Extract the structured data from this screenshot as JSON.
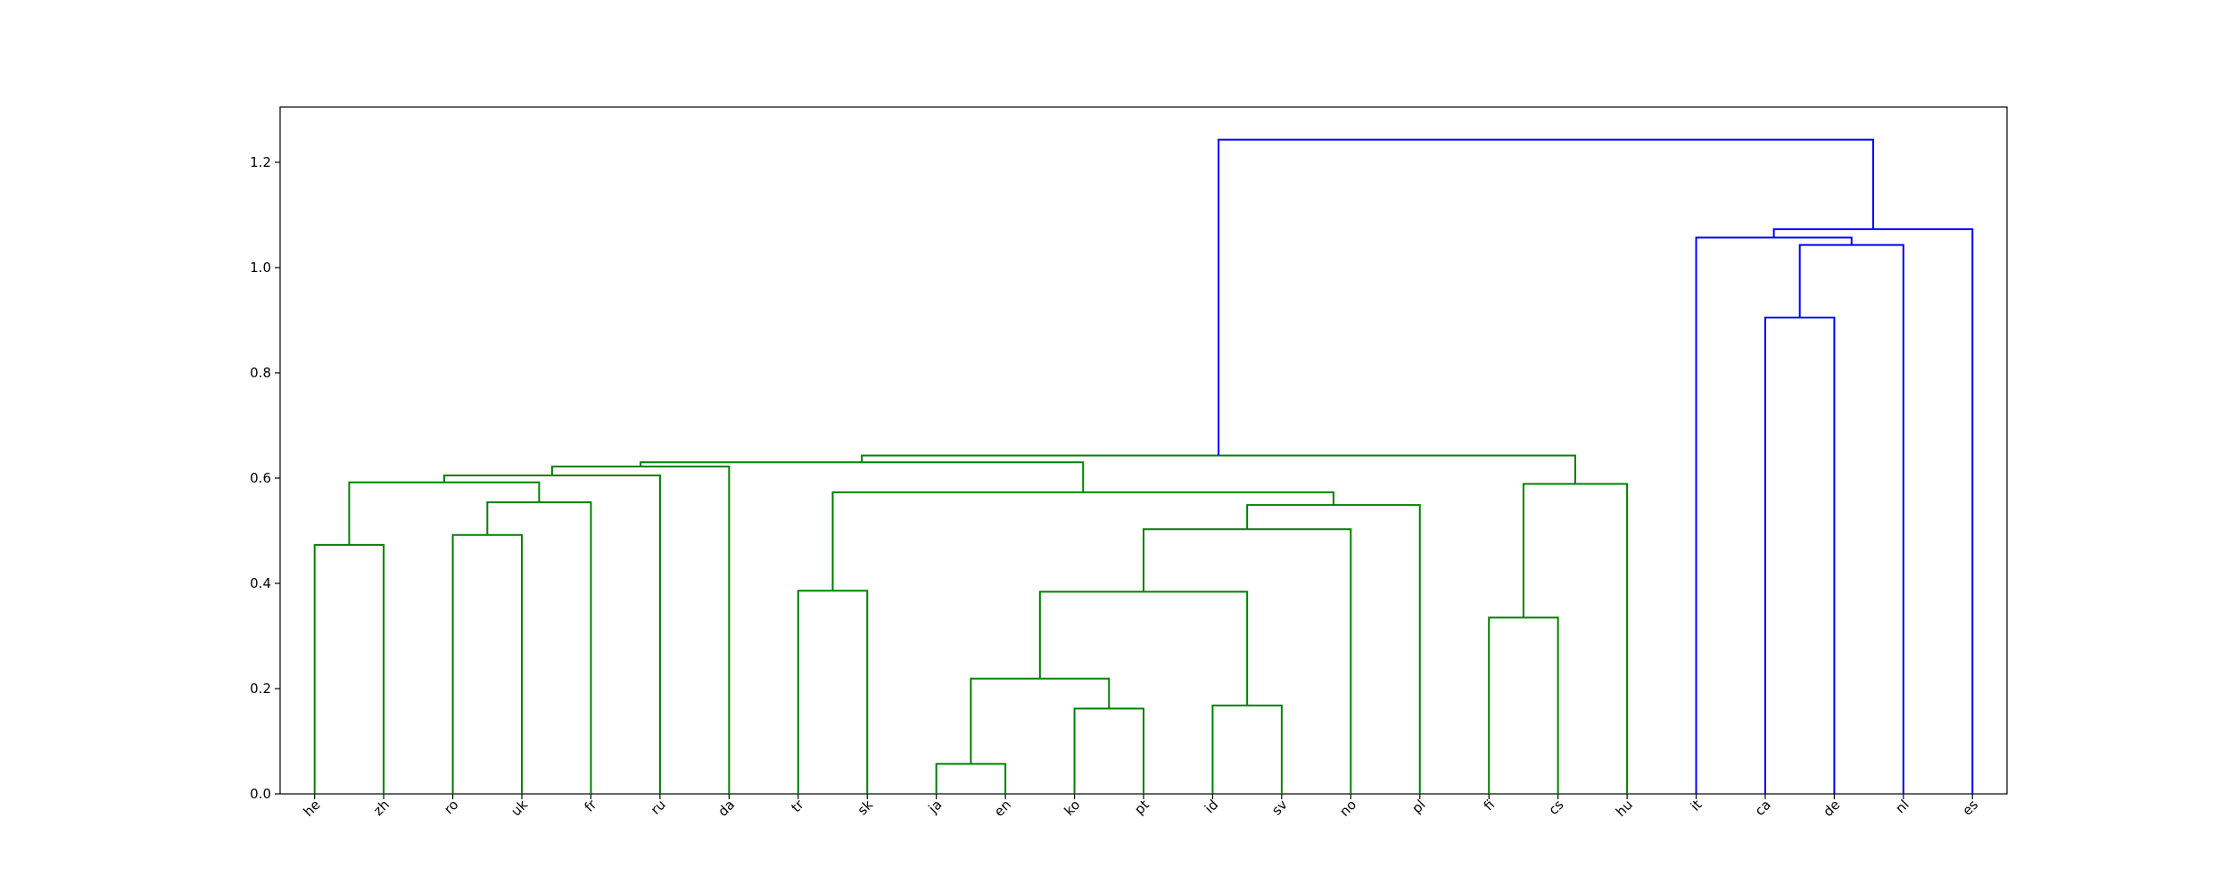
{
  "chart_data": {
    "type": "dendrogram",
    "categories": [
      "he",
      "zh",
      "ro",
      "uk",
      "fr",
      "ru",
      "da",
      "tr",
      "sk",
      "ja",
      "en",
      "ko",
      "pt",
      "id",
      "sv",
      "no",
      "pl",
      "fi",
      "cs",
      "hu",
      "it",
      "ca",
      "de",
      "nl",
      "es"
    ],
    "links": [
      {
        "children": [
          0,
          1
        ],
        "height": 0.473,
        "color": "#008000"
      },
      {
        "children": [
          2,
          3
        ],
        "height": 0.492,
        "color": "#008000"
      },
      {
        "children": [
          26,
          4
        ],
        "height": 0.554,
        "color": "#008000"
      },
      {
        "children": [
          25,
          27
        ],
        "height": 0.592,
        "color": "#008000"
      },
      {
        "children": [
          28,
          5
        ],
        "height": 0.605,
        "color": "#008000"
      },
      {
        "children": [
          29,
          6
        ],
        "height": 0.622,
        "color": "#008000"
      },
      {
        "children": [
          7,
          8
        ],
        "height": 0.386,
        "color": "#008000"
      },
      {
        "children": [
          9,
          10
        ],
        "height": 0.057,
        "color": "#008000"
      },
      {
        "children": [
          11,
          12
        ],
        "height": 0.162,
        "color": "#008000"
      },
      {
        "children": [
          32,
          33
        ],
        "height": 0.219,
        "color": "#008000"
      },
      {
        "children": [
          13,
          14
        ],
        "height": 0.168,
        "color": "#008000"
      },
      {
        "children": [
          34,
          35
        ],
        "height": 0.384,
        "color": "#008000"
      },
      {
        "children": [
          36,
          15
        ],
        "height": 0.503,
        "color": "#008000"
      },
      {
        "children": [
          37,
          16
        ],
        "height": 0.549,
        "color": "#008000"
      },
      {
        "children": [
          31,
          38
        ],
        "height": 0.573,
        "color": "#008000"
      },
      {
        "children": [
          30,
          39
        ],
        "height": 0.63,
        "color": "#008000"
      },
      {
        "children": [
          17,
          18
        ],
        "height": 0.335,
        "color": "#008000"
      },
      {
        "children": [
          41,
          19
        ],
        "height": 0.589,
        "color": "#008000"
      },
      {
        "children": [
          40,
          42
        ],
        "height": 0.643,
        "color": "#008000"
      },
      {
        "children": [
          21,
          22
        ],
        "height": 0.905,
        "color": "#0000ff"
      },
      {
        "children": [
          44,
          23
        ],
        "height": 1.043,
        "color": "#0000ff"
      },
      {
        "children": [
          20,
          45
        ],
        "height": 1.057,
        "color": "#0000ff"
      },
      {
        "children": [
          46,
          24
        ],
        "height": 1.073,
        "color": "#0000ff"
      },
      {
        "children": [
          43,
          47
        ],
        "height": 1.243,
        "color": "#0000ff"
      }
    ],
    "ylim": [
      0,
      1.305
    ],
    "yticks": [
      {
        "value": 0,
        "label": "0.0"
      },
      0.2,
      0.4,
      0.6,
      0.8,
      {
        "value": 1,
        "label": "1.0"
      },
      1.2
    ]
  }
}
